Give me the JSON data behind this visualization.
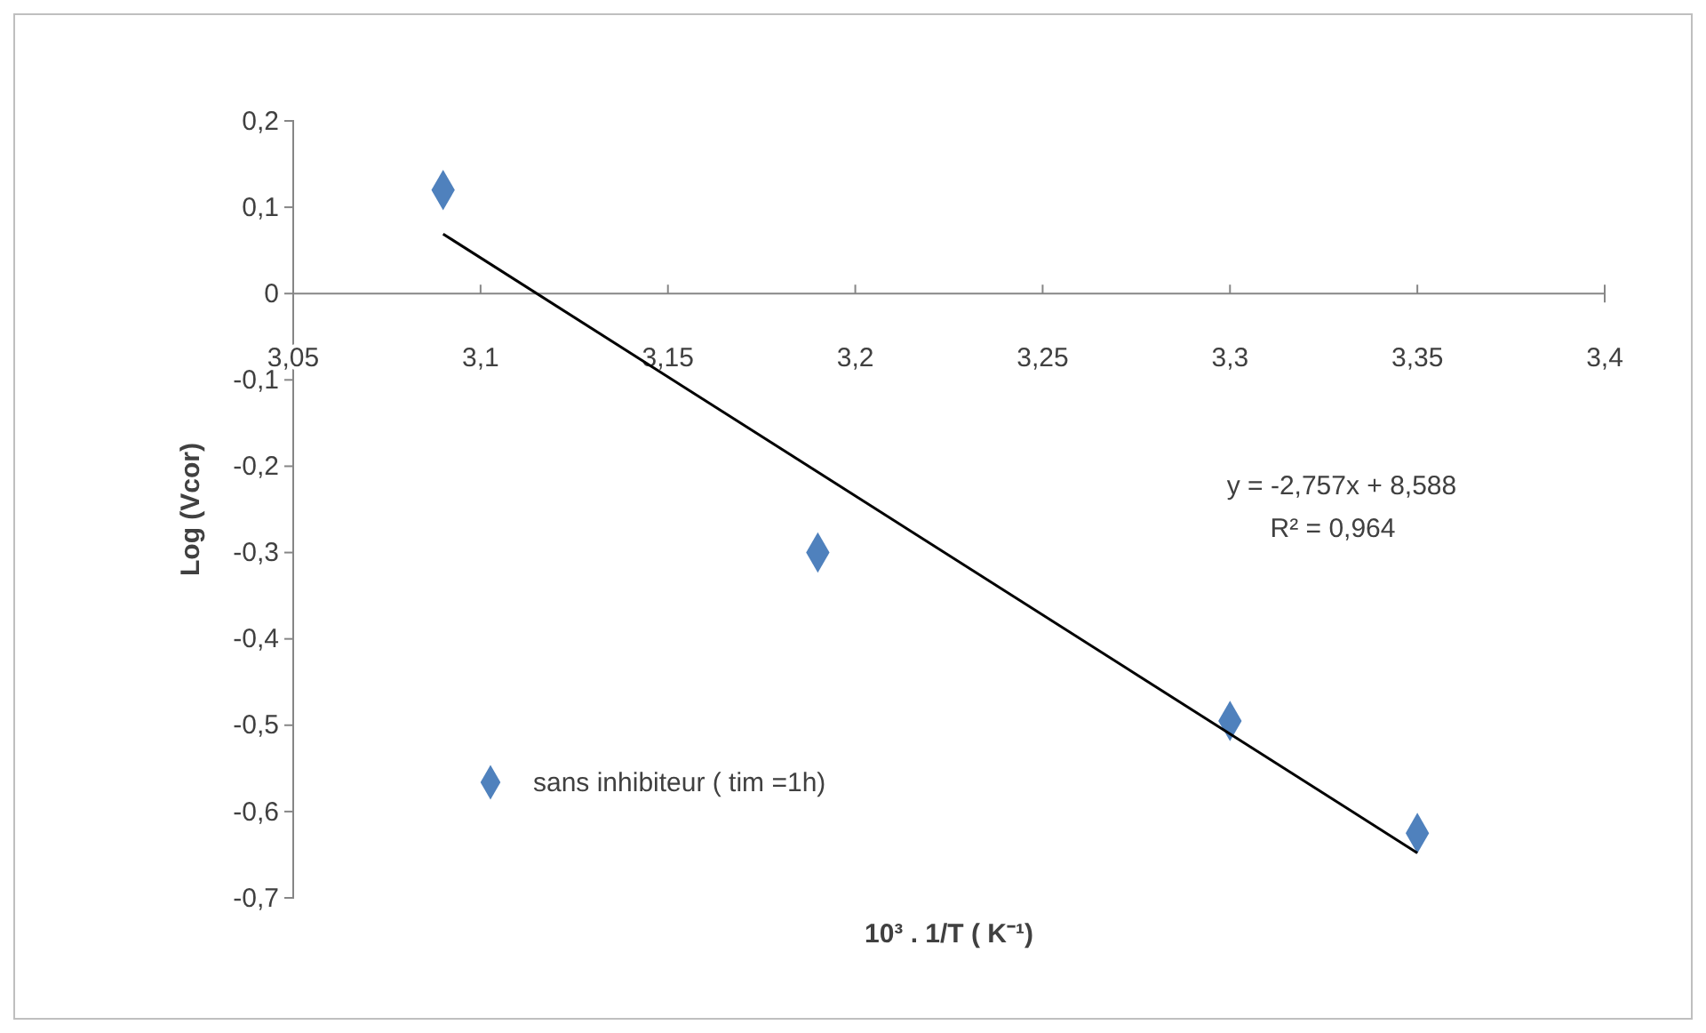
{
  "chart_data": {
    "type": "scatter",
    "xlabel": "10³ . 1/T  ( K⁻¹)",
    "ylabel": "Log (Vcor)",
    "annotations": [
      "y = -2,757x + 8,588",
      "R² = 0,964"
    ],
    "xlim": [
      3.05,
      3.4
    ],
    "ylim": [
      -0.7,
      0.2
    ],
    "xticks": [
      {
        "value": 3.05,
        "label": "3,05"
      },
      {
        "value": 3.1,
        "label": "3,1"
      },
      {
        "value": 3.15,
        "label": "3,15"
      },
      {
        "value": 3.2,
        "label": "3,2"
      },
      {
        "value": 3.25,
        "label": "3,25"
      },
      {
        "value": 3.3,
        "label": "3,3"
      },
      {
        "value": 3.35,
        "label": "3,35"
      },
      {
        "value": 3.4,
        "label": "3,4"
      }
    ],
    "yticks": [
      {
        "value": -0.7,
        "label": "-0,7"
      },
      {
        "value": -0.6,
        "label": "-0,6"
      },
      {
        "value": -0.5,
        "label": "-0,5"
      },
      {
        "value": -0.4,
        "label": "-0,4"
      },
      {
        "value": -0.3,
        "label": "-0,3"
      },
      {
        "value": -0.2,
        "label": "-0,2"
      },
      {
        "value": -0.1,
        "label": "-0,1"
      },
      0,
      {
        "value": 0.1,
        "label": "0,1"
      },
      {
        "value": 0.2,
        "label": "0,2"
      }
    ],
    "grid": false,
    "legend": "bottom left",
    "marker": "diamond",
    "series": [
      {
        "name": "sans inhibiteur ( tim =1h)",
        "color": "#4f81bd",
        "x": [
          3.09,
          3.19,
          3.3,
          3.35
        ],
        "values": [
          0.12,
          -0.3,
          -0.495,
          -0.625
        ]
      },
      {
        "type": "line",
        "color": "#000000",
        "x": [
          3.09,
          3.35
        ],
        "values": [
          0.069,
          -0.648
        ],
        "marker": "none",
        "line_style": "solid"
      }
    ]
  }
}
